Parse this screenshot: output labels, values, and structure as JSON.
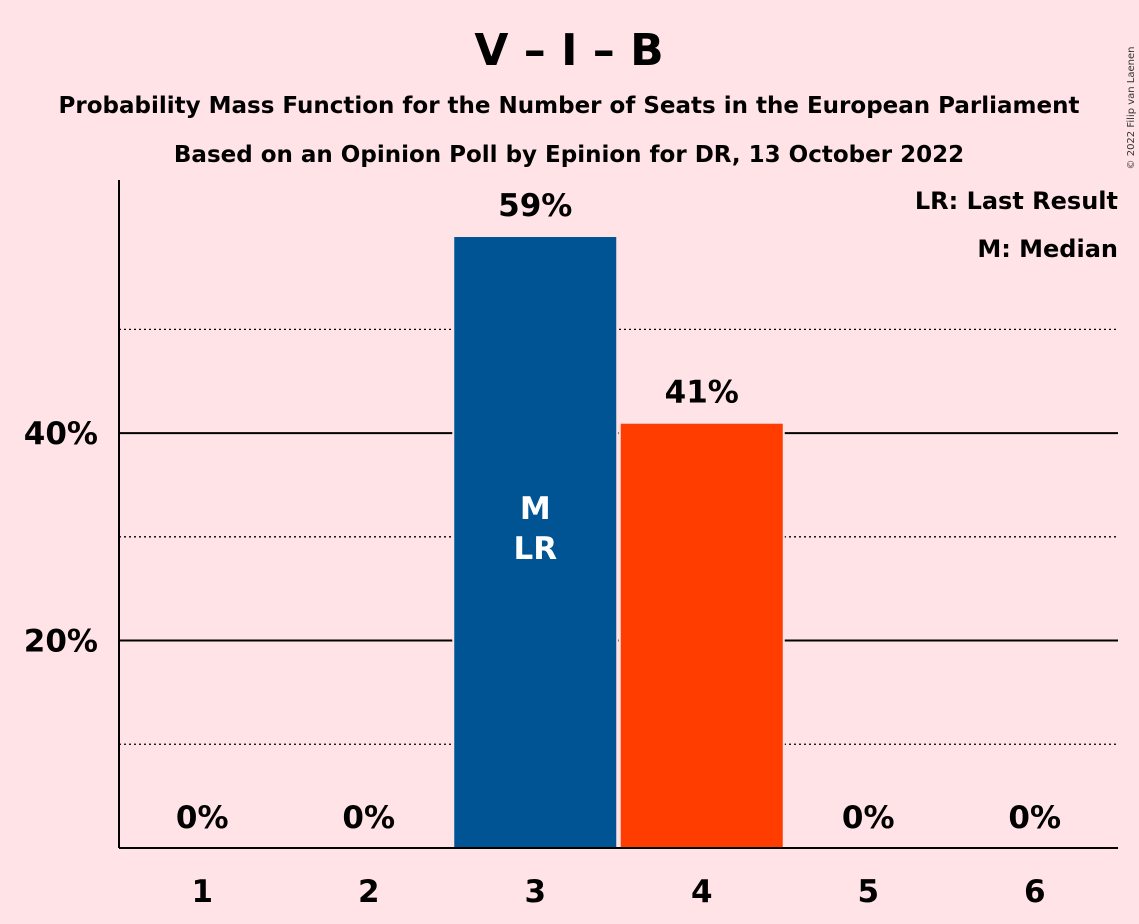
{
  "title": "V – I – B",
  "subtitle_1": "Probability Mass Function for the Number of Seats in the European Parliament",
  "subtitle_2": "Based on an Opinion Poll by Epinion for DR, 13 October 2022",
  "copyright": "© 2022 Filip van Laenen",
  "legend": {
    "last_result": "LR: Last Result",
    "median": "M: Median"
  },
  "colors": {
    "background": "#FFE3E6",
    "bar_primary": "#005493",
    "bar_secondary": "#FF3D00",
    "text": "#1a0a0f"
  },
  "chart_data": {
    "type": "bar",
    "categories": [
      "1",
      "2",
      "3",
      "4",
      "5",
      "6"
    ],
    "values": [
      0,
      0,
      59,
      41,
      0,
      0
    ],
    "value_labels": [
      "0%",
      "0%",
      "59%",
      "41%",
      "0%",
      "0%"
    ],
    "bar_colors": [
      "#005493",
      "#005493",
      "#005493",
      "#FF3D00",
      "#005493",
      "#005493"
    ],
    "median_category": "3",
    "last_result_category": "3",
    "in_bar_labels": {
      "median": "M",
      "last_result": "LR"
    },
    "y_ticks": [
      20,
      40
    ],
    "y_tick_labels": [
      "20%",
      "40%"
    ],
    "y_minor_ticks": [
      10,
      30,
      50
    ],
    "ylim": [
      0,
      64.4
    ],
    "xlabel": "",
    "ylabel": "",
    "grid": true,
    "legend_placement": "top-right"
  }
}
